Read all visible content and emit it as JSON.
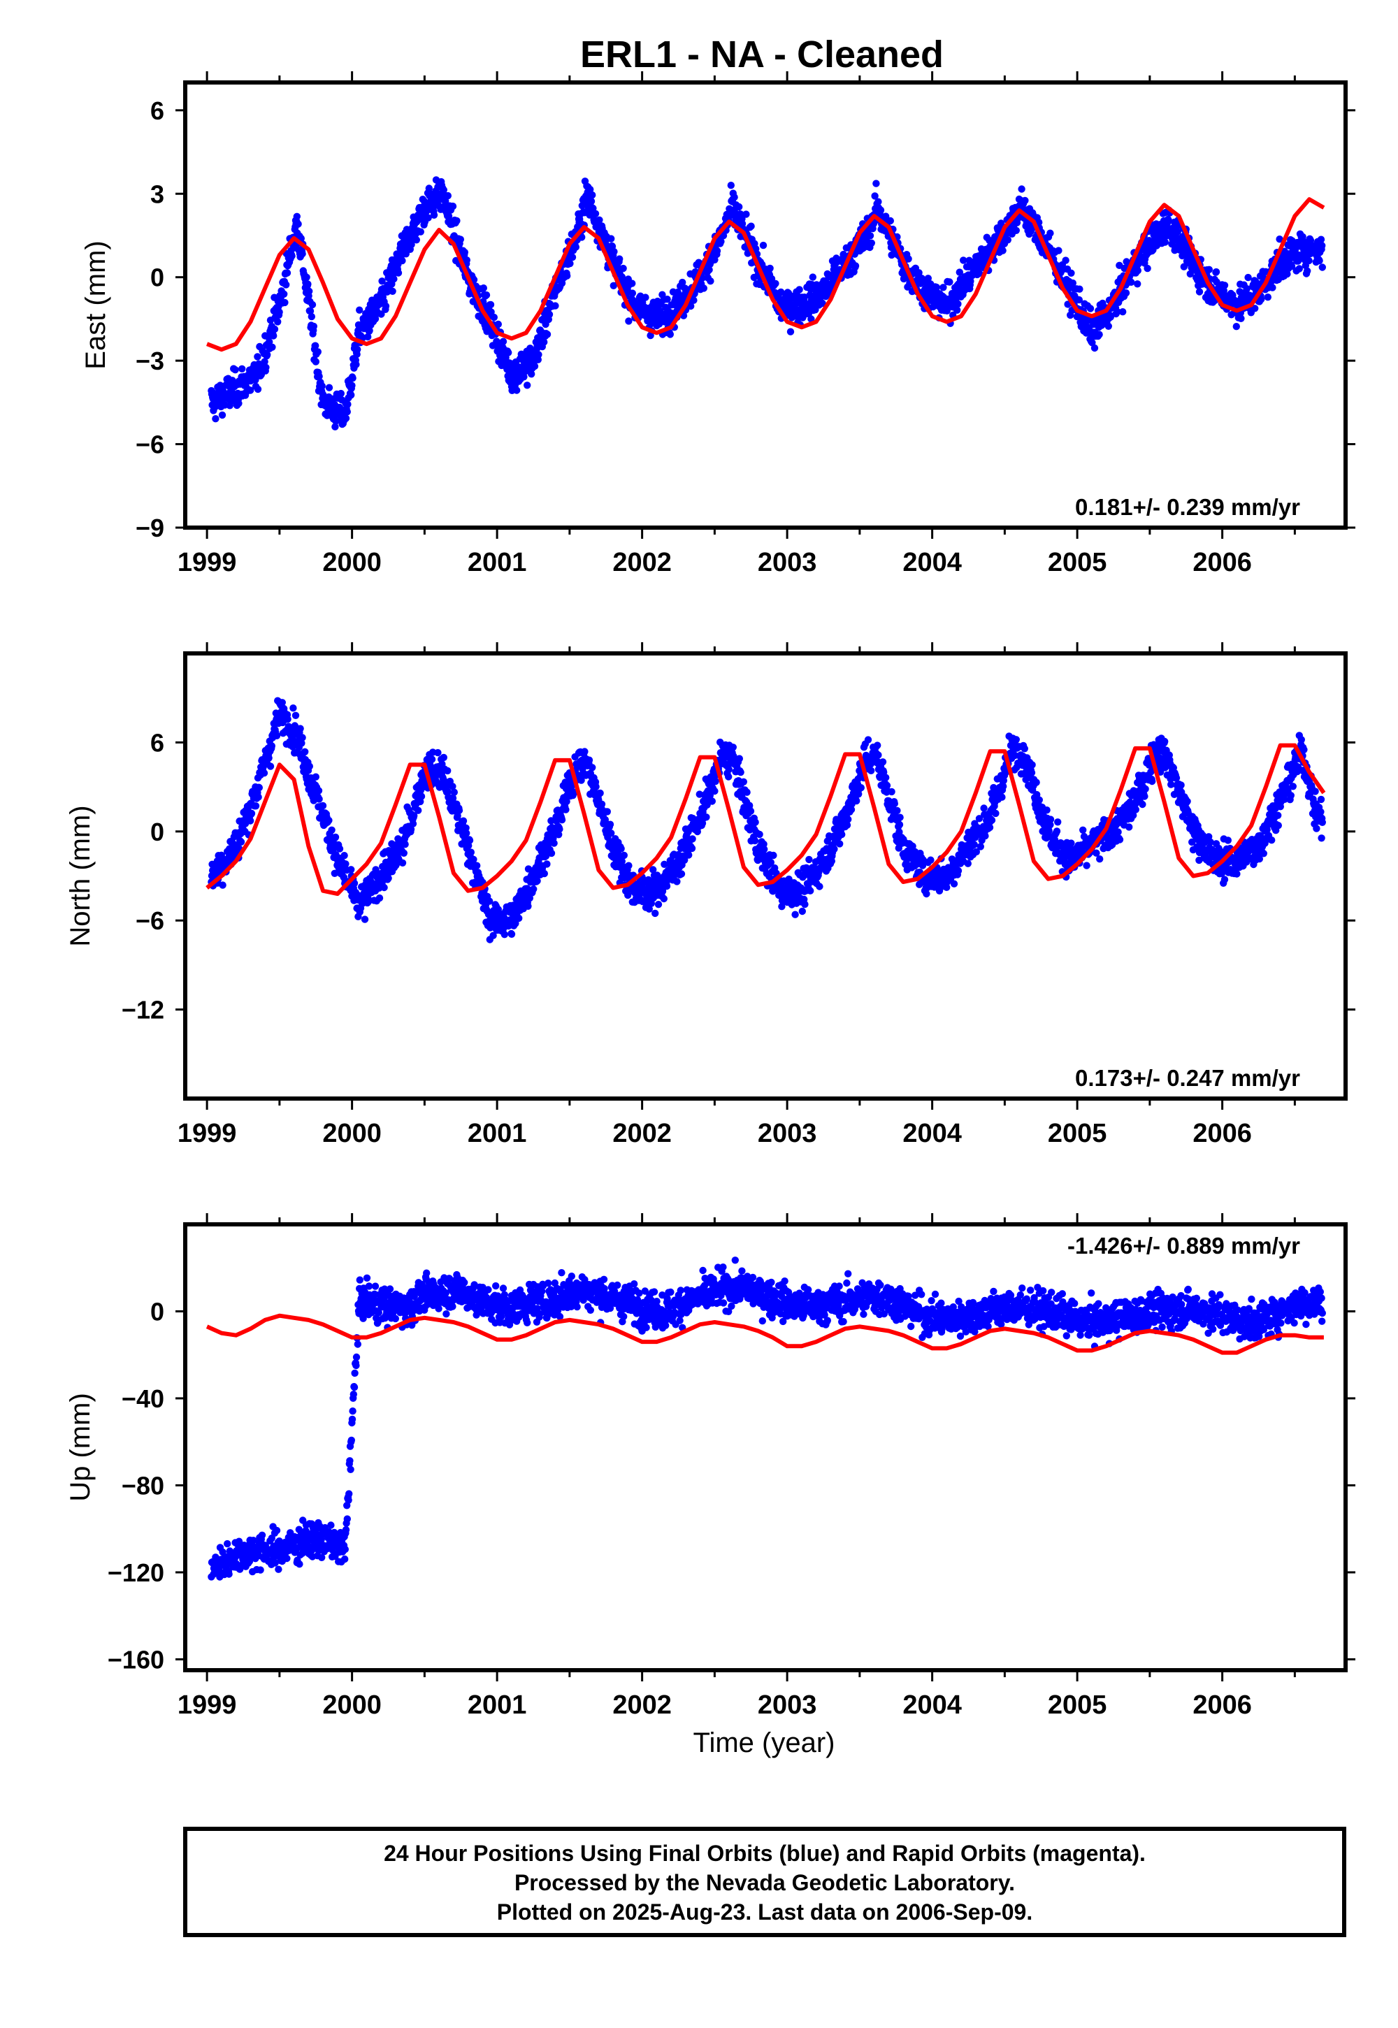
{
  "figure": {
    "title": "ERL1  - NA - Cleaned",
    "xlabel": "Time (year)",
    "footer": [
      "24 Hour Positions Using Final Orbits (blue) and Rapid Orbits (magenta).",
      "Processed by the Nevada Geodetic Laboratory.",
      "Plotted on 2025-Aug-23. Last data on 2006-Sep-09."
    ]
  },
  "colors": {
    "points": "#0000ff",
    "model": "#ff0000",
    "frame": "#000000"
  },
  "chart_data": [
    {
      "type": "scatter",
      "title": "",
      "xlabel": "",
      "ylabel": "East (mm)",
      "xlim": [
        1998.85,
        2006.85
      ],
      "ylim": [
        -9,
        7
      ],
      "xticks": [
        1999,
        2000,
        2001,
        2002,
        2003,
        2004,
        2005,
        2006
      ],
      "yticks": [
        6,
        3,
        0,
        -3,
        -6,
        -9
      ],
      "rate_text": "0.181+/- 0.239 mm/yr",
      "rate_position": "bottom-right",
      "series": [
        {
          "kind": "points",
          "color": "#0000ff",
          "count": 2650,
          "date_range": [
            1999.03,
            2006.69
          ],
          "x": [
            1999.05,
            1999.2,
            1999.35,
            1999.5,
            1999.62,
            1999.8,
            1999.95,
            2000.05,
            2000.2,
            2000.35,
            2000.5,
            2000.62,
            2000.8,
            2000.95,
            2001.1,
            2001.25,
            2001.4,
            2001.55,
            2001.62,
            2001.8,
            2001.95,
            2002.1,
            2002.25,
            2002.4,
            2002.55,
            2002.62,
            2002.8,
            2002.95,
            2003.1,
            2003.25,
            2003.4,
            2003.55,
            2003.62,
            2003.8,
            2003.95,
            2004.1,
            2004.25,
            2004.4,
            2004.55,
            2004.62,
            2004.8,
            2004.95,
            2005.1,
            2005.25,
            2005.4,
            2005.55,
            2005.62,
            2005.8,
            2005.95,
            2006.1,
            2006.25,
            2006.4,
            2006.55,
            2006.65
          ],
          "y": [
            -4.5,
            -4.0,
            -3.5,
            -1.0,
            2.0,
            -4.5,
            -5.0,
            -2.0,
            -1.0,
            1.0,
            2.5,
            3.0,
            0.0,
            -1.5,
            -3.5,
            -3.0,
            -0.5,
            1.5,
            3.0,
            0.5,
            -1.0,
            -1.5,
            -1.0,
            0.0,
            1.5,
            2.5,
            0.5,
            -1.0,
            -1.0,
            -0.5,
            0.5,
            1.5,
            2.5,
            0.5,
            -0.5,
            -1.0,
            0.0,
            1.0,
            2.0,
            2.5,
            1.0,
            -0.5,
            -2.0,
            -1.0,
            0.5,
            1.5,
            2.0,
            0.5,
            -0.5,
            -1.0,
            -0.5,
            0.5,
            1.0,
            1.0
          ]
        },
        {
          "kind": "line",
          "color": "#ff0000",
          "x": [
            1999.0,
            1999.1,
            1999.2,
            1999.3,
            1999.4,
            1999.5,
            1999.6,
            1999.7,
            1999.8,
            1999.9,
            2000.0,
            2000.1,
            2000.2,
            2000.3,
            2000.4,
            2000.5,
            2000.6,
            2000.7,
            2000.8,
            2000.9,
            2001.0,
            2001.1,
            2001.2,
            2001.3,
            2001.4,
            2001.5,
            2001.6,
            2001.7,
            2001.8,
            2001.9,
            2002.0,
            2002.1,
            2002.2,
            2002.3,
            2002.4,
            2002.5,
            2002.6,
            2002.7,
            2002.8,
            2002.9,
            2003.0,
            2003.1,
            2003.2,
            2003.3,
            2003.4,
            2003.5,
            2003.6,
            2003.7,
            2003.8,
            2003.9,
            2004.0,
            2004.1,
            2004.2,
            2004.3,
            2004.4,
            2004.5,
            2004.6,
            2004.7,
            2004.8,
            2004.9,
            2005.0,
            2005.1,
            2005.2,
            2005.3,
            2005.4,
            2005.5,
            2005.6,
            2005.7,
            2005.8,
            2005.9,
            2006.0,
            2006.1,
            2006.2,
            2006.3,
            2006.4,
            2006.5,
            2006.6,
            2006.7
          ],
          "y": [
            -2.4,
            -2.6,
            -2.4,
            -1.6,
            -0.4,
            0.8,
            1.4,
            1.0,
            -0.2,
            -1.5,
            -2.2,
            -2.4,
            -2.2,
            -1.4,
            -0.2,
            1.0,
            1.7,
            1.2,
            0.0,
            -1.2,
            -2.0,
            -2.2,
            -2.0,
            -1.2,
            0.0,
            1.2,
            1.8,
            1.4,
            0.2,
            -1.0,
            -1.8,
            -2.0,
            -1.8,
            -1.0,
            0.2,
            1.4,
            2.0,
            1.6,
            0.4,
            -0.8,
            -1.6,
            -1.8,
            -1.6,
            -0.8,
            0.4,
            1.6,
            2.2,
            1.8,
            0.6,
            -0.6,
            -1.4,
            -1.6,
            -1.4,
            -0.6,
            0.6,
            1.8,
            2.4,
            2.0,
            0.8,
            -0.4,
            -1.2,
            -1.4,
            -1.2,
            -0.4,
            0.8,
            2.0,
            2.6,
            2.2,
            1.0,
            -0.2,
            -1.0,
            -1.2,
            -1.0,
            -0.2,
            1.0,
            2.2,
            2.8,
            2.5
          ]
        }
      ]
    },
    {
      "type": "scatter",
      "title": "",
      "xlabel": "",
      "ylabel": "North (mm)",
      "xlim": [
        1998.85,
        2006.85
      ],
      "ylim": [
        -18,
        12
      ],
      "xticks": [
        1999,
        2000,
        2001,
        2002,
        2003,
        2004,
        2005,
        2006
      ],
      "yticks": [
        6,
        0,
        -6,
        -12
      ],
      "rate_text": "0.173+/- 0.247 mm/yr",
      "rate_position": "bottom-right",
      "series": [
        {
          "kind": "points",
          "color": "#0000ff",
          "count": 2650,
          "date_range": [
            1999.03,
            2006.69
          ],
          "x": [
            1999.05,
            1999.2,
            1999.35,
            1999.5,
            1999.62,
            1999.8,
            1999.95,
            2000.05,
            2000.2,
            2000.35,
            2000.5,
            2000.62,
            2000.8,
            2000.95,
            2001.1,
            2001.25,
            2001.4,
            2001.55,
            2001.62,
            2001.8,
            2001.95,
            2002.1,
            2002.25,
            2002.4,
            2002.55,
            2002.62,
            2002.8,
            2002.95,
            2003.1,
            2003.25,
            2003.4,
            2003.55,
            2003.62,
            2003.8,
            2003.95,
            2004.1,
            2004.25,
            2004.4,
            2004.55,
            2004.62,
            2004.8,
            2004.95,
            2005.1,
            2005.25,
            2005.4,
            2005.55,
            2005.62,
            2005.8,
            2005.95,
            2006.1,
            2006.25,
            2006.4,
            2006.55,
            2006.65
          ],
          "y": [
            -3.0,
            -1.0,
            3.0,
            8.0,
            6.5,
            1.0,
            -3.0,
            -5.0,
            -3.0,
            -1.0,
            4.0,
            4.0,
            -1.0,
            -6.0,
            -6.0,
            -3.0,
            0.0,
            4.5,
            4.5,
            -1.0,
            -4.0,
            -4.0,
            -2.0,
            1.0,
            5.0,
            5.0,
            -1.0,
            -4.0,
            -4.0,
            -2.0,
            1.0,
            5.0,
            5.0,
            -1.0,
            -3.0,
            -3.0,
            -1.0,
            1.0,
            5.5,
            5.5,
            0.0,
            -2.0,
            -1.0,
            0.0,
            2.0,
            5.5,
            5.0,
            0.0,
            -2.0,
            -2.0,
            -1.0,
            2.0,
            5.5,
            1.0
          ]
        },
        {
          "kind": "line",
          "color": "#ff0000",
          "x": [
            1999.0,
            1999.1,
            1999.2,
            1999.3,
            1999.4,
            1999.5,
            1999.6,
            1999.7,
            1999.8,
            1999.9,
            2000.0,
            2000.1,
            2000.2,
            2000.3,
            2000.4,
            2000.5,
            2000.6,
            2000.7,
            2000.8,
            2000.9,
            2001.0,
            2001.1,
            2001.2,
            2001.3,
            2001.4,
            2001.5,
            2001.6,
            2001.7,
            2001.8,
            2001.9,
            2002.0,
            2002.1,
            2002.2,
            2002.3,
            2002.4,
            2002.5,
            2002.6,
            2002.7,
            2002.8,
            2002.9,
            2003.0,
            2003.1,
            2003.2,
            2003.3,
            2003.4,
            2003.5,
            2003.6,
            2003.7,
            2003.8,
            2003.9,
            2004.0,
            2004.1,
            2004.2,
            2004.3,
            2004.4,
            2004.5,
            2004.6,
            2004.7,
            2004.8,
            2004.9,
            2005.0,
            2005.1,
            2005.2,
            2005.3,
            2005.4,
            2005.5,
            2005.6,
            2005.7,
            2005.8,
            2005.9,
            2006.0,
            2006.1,
            2006.2,
            2006.3,
            2006.4,
            2006.5,
            2006.6,
            2006.7
          ],
          "y": [
            -3.8,
            -3.0,
            -2.0,
            -0.5,
            2.0,
            4.5,
            3.5,
            -1.0,
            -4.0,
            -4.2,
            -3.2,
            -2.2,
            -0.8,
            1.8,
            4.5,
            4.5,
            1.0,
            -2.8,
            -4.0,
            -3.8,
            -3.0,
            -2.0,
            -0.6,
            2.0,
            4.8,
            4.8,
            1.2,
            -2.6,
            -3.8,
            -3.6,
            -2.8,
            -1.8,
            -0.4,
            2.2,
            5.0,
            5.0,
            1.4,
            -2.4,
            -3.6,
            -3.4,
            -2.6,
            -1.6,
            -0.2,
            2.4,
            5.2,
            5.2,
            1.6,
            -2.2,
            -3.4,
            -3.2,
            -2.4,
            -1.4,
            0.0,
            2.6,
            5.4,
            5.4,
            1.8,
            -2.0,
            -3.2,
            -3.0,
            -2.2,
            -1.2,
            0.2,
            2.8,
            5.6,
            5.6,
            2.0,
            -1.8,
            -3.0,
            -2.8,
            -2.0,
            -1.0,
            0.4,
            3.0,
            5.8,
            5.8,
            4.0,
            2.6
          ]
        }
      ]
    },
    {
      "type": "scatter",
      "title": "",
      "xlabel": "Time (year)",
      "ylabel": "Up (mm)",
      "xlim": [
        1998.85,
        2006.85
      ],
      "ylim": [
        -165,
        40
      ],
      "xticks": [
        1999,
        2000,
        2001,
        2002,
        2003,
        2004,
        2005,
        2006
      ],
      "yticks": [
        0,
        -40,
        -80,
        -120,
        -160
      ],
      "rate_text": "-1.426+/- 0.889 mm/yr",
      "rate_position": "top-right",
      "series": [
        {
          "kind": "points",
          "color": "#0000ff",
          "count": 2650,
          "date_range": [
            1999.03,
            2006.69
          ],
          "x": [
            1999.05,
            1999.2,
            1999.35,
            1999.5,
            1999.65,
            1999.8,
            1999.95,
            2000.05,
            2000.2,
            2000.35,
            2000.5,
            2000.65,
            2000.8,
            2000.95,
            2001.1,
            2001.25,
            2001.4,
            2001.55,
            2001.7,
            2001.85,
            2002.0,
            2002.15,
            2002.3,
            2002.45,
            2002.6,
            2002.75,
            2002.9,
            2003.05,
            2003.2,
            2003.35,
            2003.5,
            2003.65,
            2003.8,
            2003.95,
            2004.1,
            2004.25,
            2004.4,
            2004.55,
            2004.7,
            2004.85,
            2005.0,
            2005.15,
            2005.3,
            2005.45,
            2005.6,
            2005.75,
            2005.9,
            2006.05,
            2006.2,
            2006.35,
            2006.5,
            2006.65
          ],
          "y": [
            -118,
            -112,
            -110,
            -110,
            -106,
            -104,
            -110,
            5,
            3,
            2,
            7,
            10,
            8,
            3,
            2,
            4,
            6,
            10,
            8,
            5,
            2,
            0,
            4,
            8,
            11,
            10,
            6,
            3,
            2,
            4,
            6,
            7,
            3,
            -2,
            -4,
            -2,
            0,
            2,
            1,
            -1,
            -4,
            -5,
            -3,
            -1,
            0,
            1,
            0,
            -3,
            -6,
            -2,
            3,
            4
          ]
        },
        {
          "kind": "line",
          "color": "#ff0000",
          "x": [
            1999.0,
            1999.1,
            1999.2,
            1999.3,
            1999.4,
            1999.5,
            1999.6,
            1999.7,
            1999.8,
            1999.9,
            2000.0,
            2000.1,
            2000.2,
            2000.3,
            2000.4,
            2000.5,
            2000.6,
            2000.7,
            2000.8,
            2000.9,
            2001.0,
            2001.1,
            2001.2,
            2001.3,
            2001.4,
            2001.5,
            2001.6,
            2001.7,
            2001.8,
            2001.9,
            2002.0,
            2002.1,
            2002.2,
            2002.3,
            2002.4,
            2002.5,
            2002.6,
            2002.7,
            2002.8,
            2002.9,
            2003.0,
            2003.1,
            2003.2,
            2003.3,
            2003.4,
            2003.5,
            2003.6,
            2003.7,
            2003.8,
            2003.9,
            2004.0,
            2004.1,
            2004.2,
            2004.3,
            2004.4,
            2004.5,
            2004.6,
            2004.7,
            2004.8,
            2004.9,
            2005.0,
            2005.1,
            2005.2,
            2005.3,
            2005.4,
            2005.5,
            2005.6,
            2005.7,
            2005.8,
            2005.9,
            2006.0,
            2006.1,
            2006.2,
            2006.3,
            2006.4,
            2006.5,
            2006.6,
            2006.7
          ],
          "y": [
            -7,
            -10,
            -11,
            -8,
            -4,
            -2,
            -3,
            -4,
            -6,
            -9,
            -12,
            -12,
            -10,
            -7,
            -4,
            -3,
            -4,
            -5,
            -7,
            -10,
            -13,
            -13,
            -11,
            -8,
            -5,
            -4,
            -5,
            -6,
            -8,
            -11,
            -14,
            -14,
            -12,
            -9,
            -6,
            -5,
            -6,
            -7,
            -9,
            -12,
            -16,
            -16,
            -14,
            -11,
            -8,
            -7,
            -8,
            -9,
            -11,
            -14,
            -17,
            -17,
            -15,
            -12,
            -9,
            -8,
            -9,
            -10,
            -12,
            -15,
            -18,
            -18,
            -16,
            -13,
            -10,
            -9,
            -10,
            -11,
            -13,
            -16,
            -19,
            -19,
            -16,
            -13,
            -11,
            -11,
            -12,
            -12
          ]
        }
      ]
    }
  ]
}
